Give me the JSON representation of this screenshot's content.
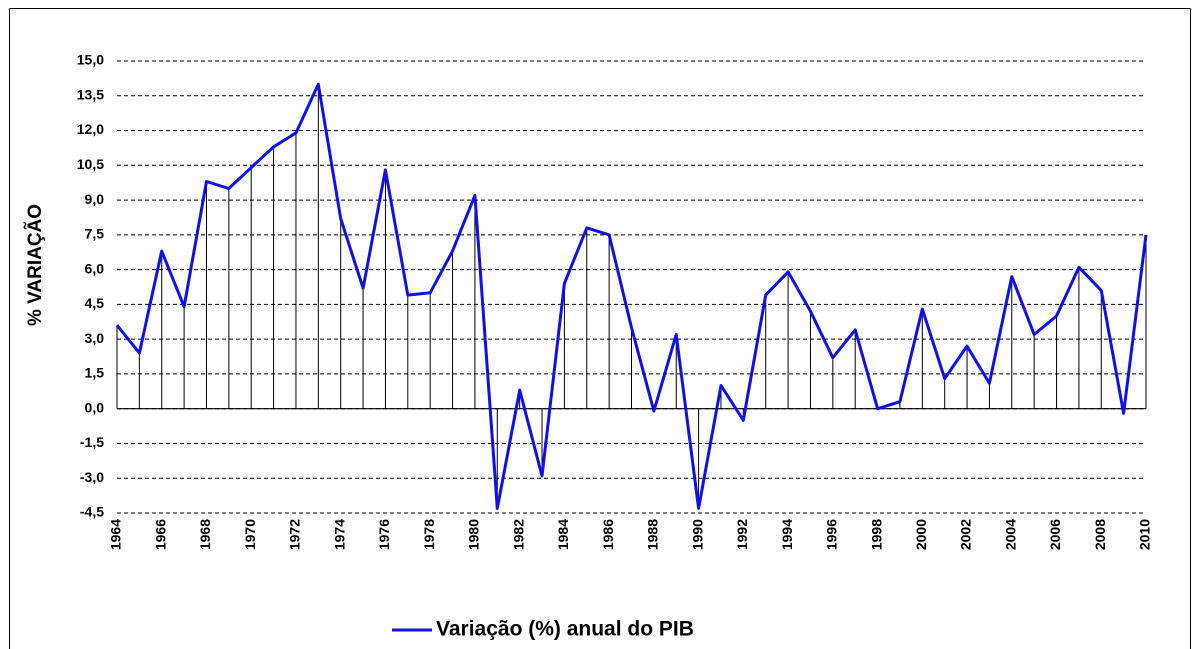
{
  "chart_data": {
    "type": "line",
    "y_label": "% VARIAÇÃO",
    "x": [
      1964,
      1965,
      1966,
      1967,
      1968,
      1969,
      1970,
      1971,
      1972,
      1973,
      1974,
      1975,
      1976,
      1977,
      1978,
      1979,
      1980,
      1981,
      1982,
      1983,
      1984,
      1985,
      1986,
      1987,
      1988,
      1989,
      1990,
      1991,
      1992,
      1993,
      1994,
      1995,
      1996,
      1997,
      1998,
      1999,
      2000,
      2001,
      2002,
      2003,
      2004,
      2005,
      2006,
      2007,
      2008,
      2009,
      2010
    ],
    "series": [
      {
        "name": "Variação (%) anual do PIB",
        "color": "#1010e8",
        "values": [
          3.6,
          2.4,
          6.8,
          4.4,
          9.8,
          9.5,
          10.4,
          11.3,
          11.9,
          14.0,
          8.2,
          5.2,
          10.3,
          4.9,
          5.0,
          6.8,
          9.2,
          -4.3,
          0.8,
          -2.9,
          5.4,
          7.8,
          7.5,
          3.5,
          -0.1,
          3.2,
          -4.3,
          1.0,
          -0.5,
          4.9,
          5.9,
          4.2,
          2.2,
          3.4,
          0.0,
          0.3,
          4.3,
          1.3,
          2.7,
          1.1,
          5.7,
          3.2,
          4.0,
          6.1,
          5.1,
          -0.2,
          7.5
        ]
      }
    ],
    "xlim": [
      1964,
      2010
    ],
    "xticks": [
      1964,
      1966,
      1968,
      1970,
      1972,
      1974,
      1976,
      1978,
      1980,
      1982,
      1984,
      1986,
      1988,
      1990,
      1992,
      1994,
      1996,
      1998,
      2000,
      2002,
      2004,
      2006,
      2008,
      2010
    ],
    "ylim": [
      -4.5,
      15
    ],
    "yticks": [
      {
        "value": -4.5,
        "label": "-4,5"
      },
      {
        "value": -3,
        "label": "-3,0"
      },
      {
        "value": -1.5,
        "label": "-1,5"
      },
      {
        "value": 0,
        "label": "0,0"
      },
      {
        "value": 1.5,
        "label": "1,5"
      },
      {
        "value": 3,
        "label": "3,0"
      },
      {
        "value": 4.5,
        "label": "4,5"
      },
      {
        "value": 6,
        "label": "6,0"
      },
      {
        "value": 7.5,
        "label": "7,5"
      },
      {
        "value": 9,
        "label": "9,0"
      },
      {
        "value": 10.5,
        "label": "10,5"
      },
      {
        "value": 12,
        "label": "12,0"
      },
      {
        "value": 13.5,
        "label": "13,5"
      },
      {
        "value": 15,
        "label": "15,0"
      }
    ],
    "grid": true,
    "drop_lines": true,
    "legend": "bottom"
  }
}
